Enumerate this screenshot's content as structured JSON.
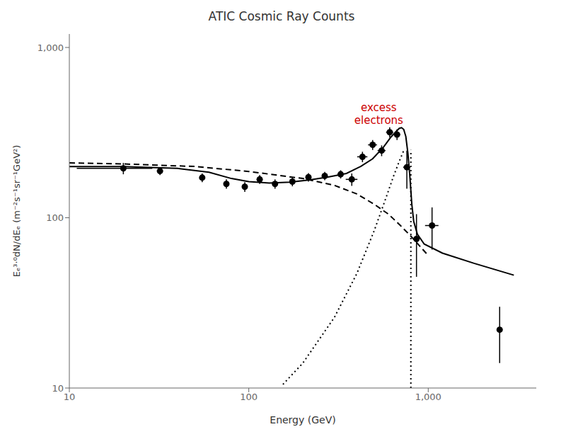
{
  "chart_data": {
    "type": "line",
    "title": "ATIC Cosmic Ray Counts",
    "xlabel": "Energy (GeV)",
    "ylabel": "Eₑ³·⁰dN/dEₑ (m⁻²s⁻¹sr⁻¹GeV²)",
    "log": true,
    "grid": false,
    "xlim": [
      10,
      4000
    ],
    "ylim": [
      10,
      1200
    ],
    "xticks": [
      10,
      100,
      {
        "value": 1000,
        "label": "1,000"
      }
    ],
    "yticks": [
      10,
      100,
      {
        "value": 1000,
        "label": "1,000"
      }
    ],
    "series": [
      {
        "type": "line",
        "line_style": "dashed",
        "color": "#000000",
        "x": [
          10,
          20,
          50,
          100,
          200,
          300,
          400,
          500,
          600,
          700,
          800,
          1000
        ],
        "values": [
          210,
          207,
          200,
          187,
          170,
          155,
          138,
          120,
          105,
          90,
          78,
          60
        ]
      },
      {
        "type": "line",
        "line_style": "dotted",
        "color": "#000000",
        "x": [
          155,
          200,
          300,
          400,
          500,
          580,
          640,
          690,
          730
        ],
        "values": [
          10.5,
          14,
          26,
          47,
          84,
          130,
          175,
          215,
          248
        ]
      },
      {
        "type": "line",
        "line_style": "dotted",
        "color": "#000000",
        "x": [
          800,
          800
        ],
        "values": [
          10,
          250
        ]
      },
      {
        "type": "line",
        "line_style": "solid",
        "color": "#000000",
        "x": [
          10,
          20,
          40,
          60,
          80,
          100,
          130,
          170,
          220,
          280,
          350,
          420,
          490,
          560,
          620,
          660,
          690,
          710,
          730,
          750,
          770,
          790,
          810,
          830,
          870,
          950,
          1200,
          1800,
          3000
        ],
        "values": [
          200,
          200,
          195,
          185,
          170,
          163,
          160,
          162,
          167,
          174,
          182,
          200,
          222,
          258,
          298,
          320,
          335,
          338,
          330,
          300,
          240,
          175,
          120,
          95,
          80,
          70,
          62,
          54,
          46
        ]
      },
      {
        "type": "scatter",
        "marker": "o",
        "color": "#000000",
        "x": [
          20,
          32,
          55,
          75,
          95,
          115,
          140,
          175,
          215,
          265,
          325,
          375,
          430,
          490,
          550,
          610,
          670,
          760,
          860,
          1050,
          2500
        ],
        "values": [
          195,
          188,
          172,
          158,
          152,
          168,
          158,
          163,
          173,
          176,
          180,
          168,
          228,
          268,
          248,
          318,
          308,
          198,
          75,
          90,
          22
        ],
        "xerr_lo": [
          9,
          0,
          0,
          0,
          0,
          0,
          0,
          0,
          0,
          0,
          0,
          28,
          28,
          28,
          28,
          28,
          28,
          35,
          0,
          90,
          0
        ],
        "xerr_hi": [
          9,
          0,
          0,
          0,
          0,
          0,
          0,
          0,
          0,
          0,
          0,
          28,
          28,
          28,
          28,
          28,
          28,
          35,
          0,
          90,
          0
        ],
        "yerr_lo": [
          15,
          10,
          10,
          10,
          10,
          10,
          10,
          10,
          10,
          10,
          10,
          14,
          16,
          18,
          18,
          22,
          22,
          50,
          30,
          25,
          8
        ],
        "yerr_hi": [
          15,
          10,
          10,
          10,
          10,
          10,
          10,
          10,
          10,
          10,
          10,
          14,
          16,
          18,
          18,
          22,
          22,
          50,
          30,
          25,
          8
        ]
      }
    ],
    "annotations": [
      {
        "text": "excess\nelectrons",
        "x": 530,
        "y": 480,
        "color": "#cc0000"
      }
    ]
  }
}
